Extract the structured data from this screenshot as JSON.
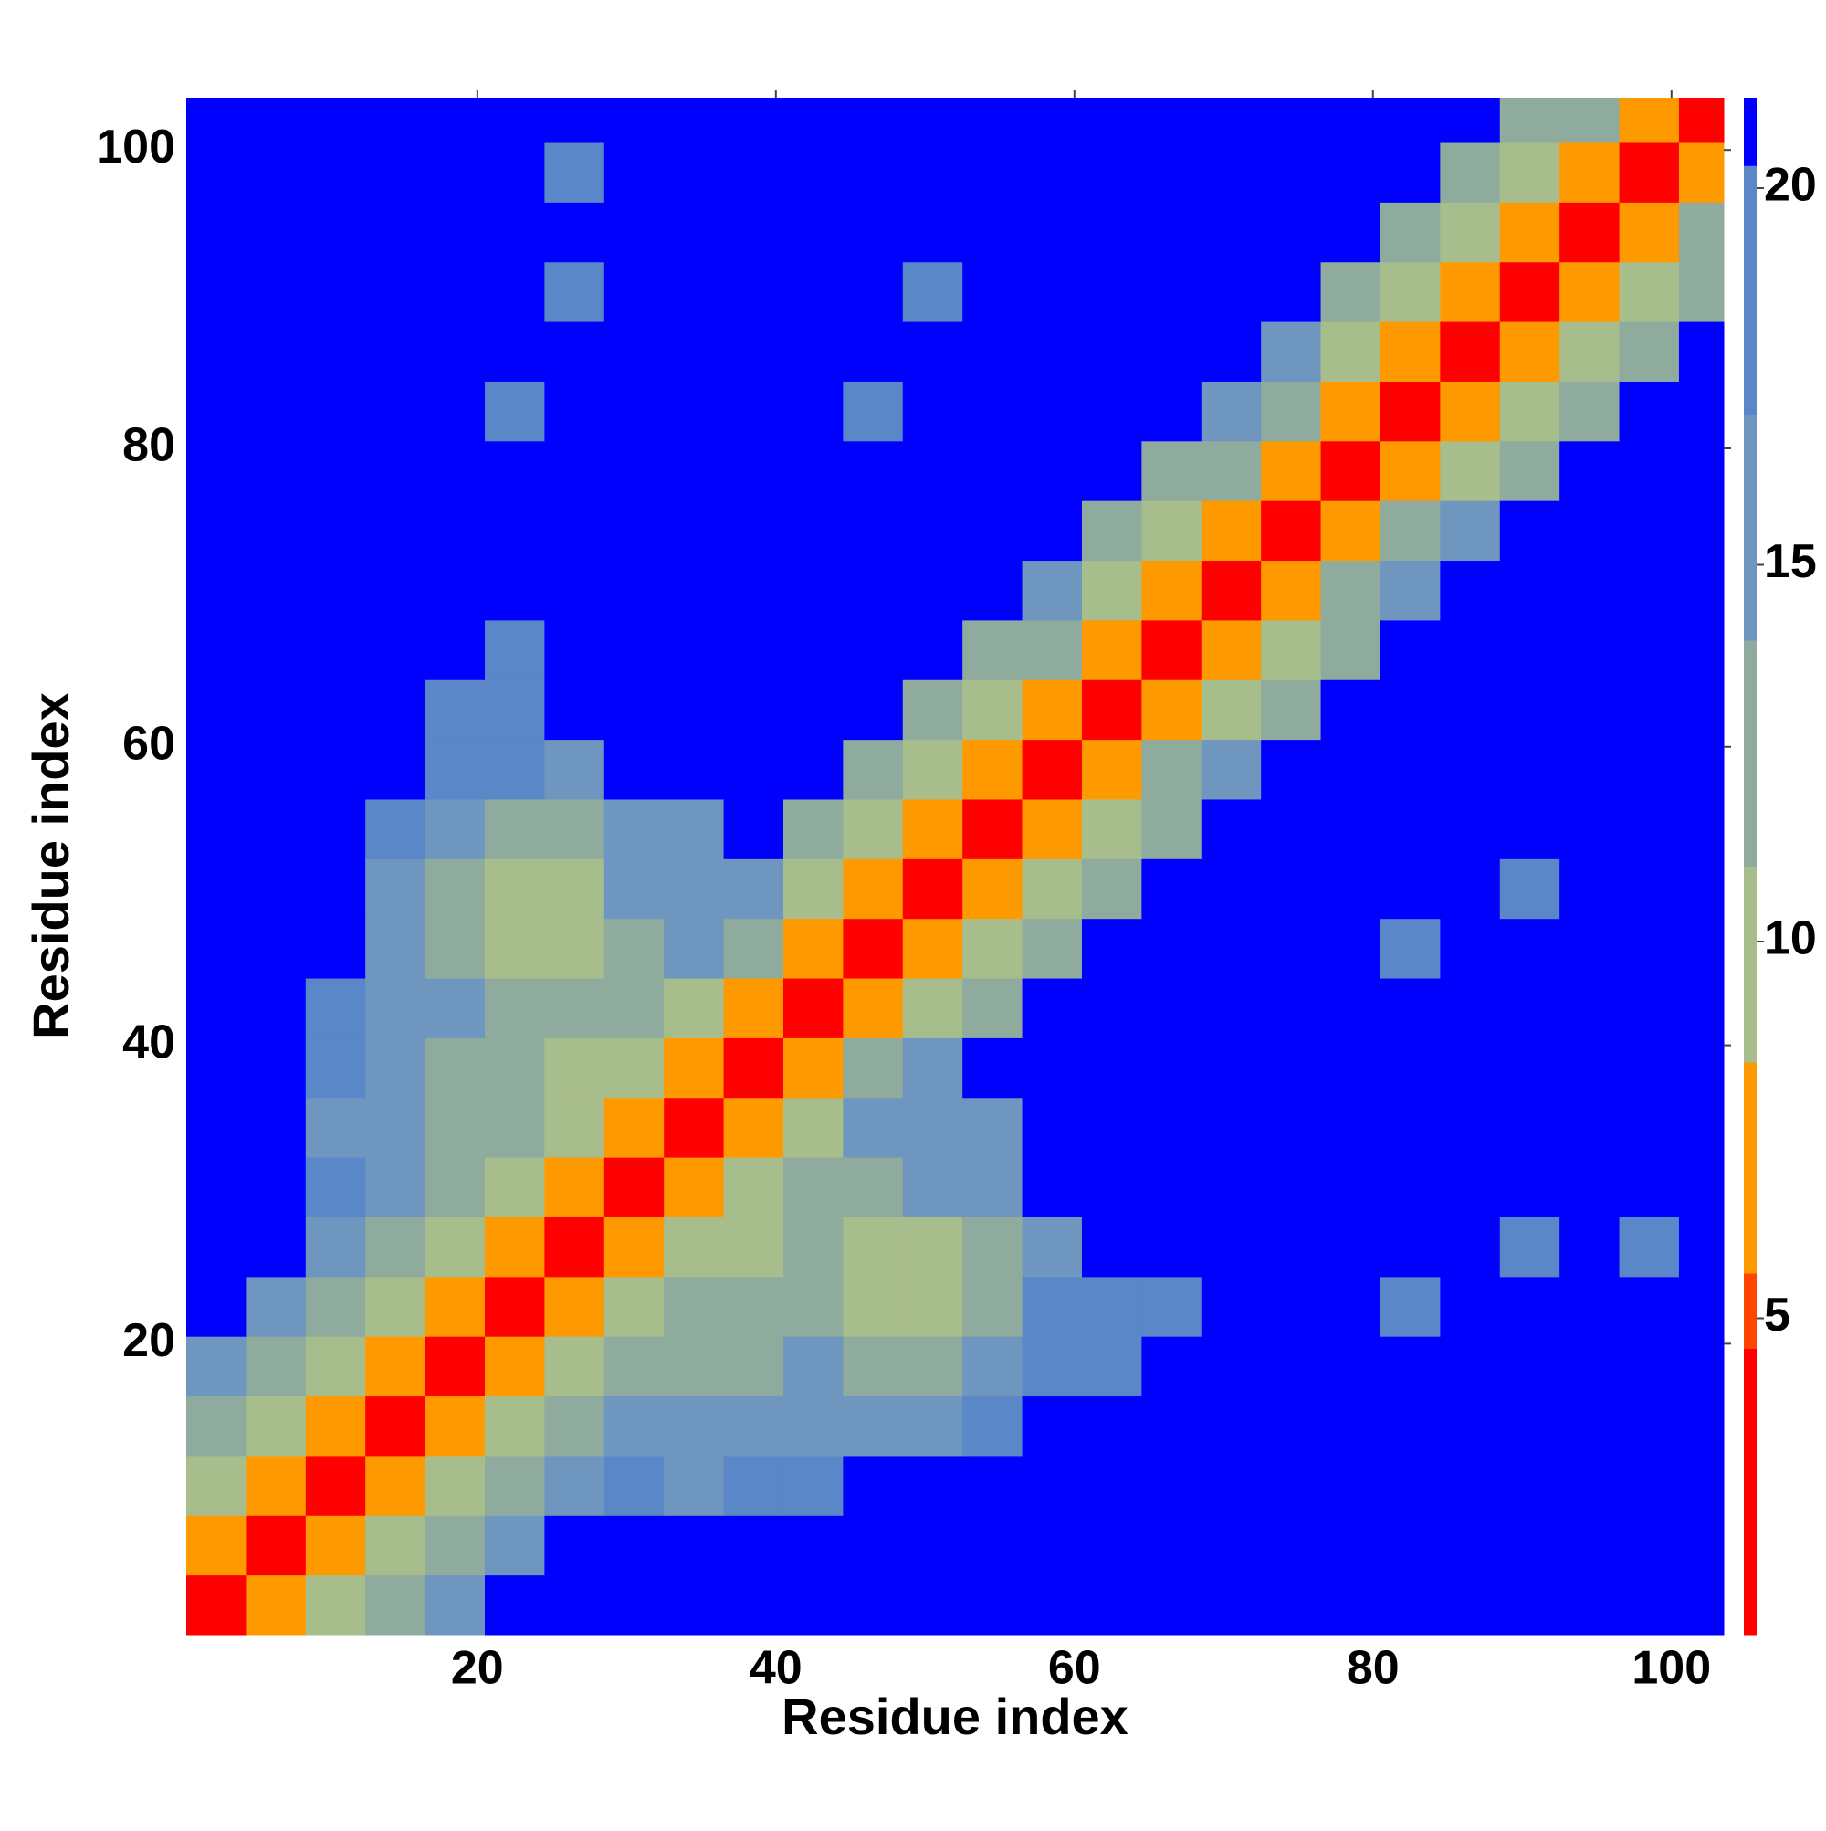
{
  "chart_data": {
    "type": "heatmap",
    "xlabel": "Residue index",
    "ylabel": "Residue index",
    "xbins": [
      0.5,
      4.5,
      8.5,
      12.5,
      16.5,
      20.5,
      24.5,
      28.5,
      32.5,
      36.5,
      40.5,
      44.5,
      48.5,
      52.5,
      56.5,
      60.5,
      64.5,
      68.5,
      72.5,
      76.5,
      80.5,
      84.5,
      88.5,
      92.5,
      96.5,
      100.5,
      103.5
    ],
    "ybins": [
      0.5,
      4.5,
      8.5,
      12.5,
      16.5,
      20.5,
      24.5,
      28.5,
      32.5,
      36.5,
      40.5,
      44.5,
      48.5,
      52.5,
      56.5,
      60.5,
      64.5,
      68.5,
      72.5,
      76.5,
      80.5,
      84.5,
      88.5,
      92.5,
      96.5,
      100.5,
      103.5
    ],
    "xlim": [
      0.5,
      103.5
    ],
    "ylim": [
      0.5,
      103.5
    ],
    "xticks": [
      20,
      40,
      60,
      80,
      100
    ],
    "yticks": [
      20,
      40,
      60,
      80,
      100
    ],
    "zlim": [
      0.8,
      21.2
    ],
    "zticks": [
      5,
      10,
      15,
      20
    ],
    "levels": [
      {
        "max": 4.6,
        "color": "#ff0000"
      },
      {
        "max": 5.6,
        "color": "#ff4500"
      },
      {
        "max": 8.4,
        "color": "#ff9900"
      },
      {
        "max": 11,
        "color": "#a8bd8c"
      },
      {
        "max": 14,
        "color": "#8eab9e"
      },
      {
        "max": 17,
        "color": "#6f96bf"
      },
      {
        "max": 20.3,
        "color": "#5a87c8"
      },
      {
        "max": 21.2,
        "color": "#0000ff"
      }
    ],
    "z": [
      [
        2,
        8,
        11,
        14,
        17,
        21,
        21,
        21,
        21,
        21,
        21,
        21,
        21,
        21,
        21,
        21,
        21,
        21,
        21,
        21,
        21,
        21,
        21,
        21,
        21,
        21
      ],
      [
        8,
        2,
        8,
        11,
        14,
        17,
        21,
        21,
        21,
        21,
        21,
        21,
        21,
        21,
        21,
        21,
        21,
        21,
        21,
        21,
        21,
        21,
        21,
        21,
        21,
        21
      ],
      [
        11,
        8,
        2,
        8,
        11,
        14,
        17,
        18,
        17,
        19,
        19,
        21,
        21,
        21,
        21,
        21,
        21,
        21,
        21,
        21,
        21,
        21,
        21,
        21,
        21,
        21
      ],
      [
        14,
        11,
        8,
        2,
        8,
        11,
        14,
        17,
        15,
        16,
        17,
        17,
        17,
        18,
        21,
        21,
        21,
        21,
        21,
        21,
        21,
        21,
        21,
        21,
        21,
        21
      ],
      [
        17,
        14,
        11,
        8,
        2,
        8,
        11,
        14,
        13,
        14,
        15,
        14,
        13,
        16,
        19,
        18,
        21,
        21,
        21,
        21,
        21,
        21,
        21,
        21,
        21,
        21
      ],
      [
        21,
        17,
        14,
        11,
        8,
        2,
        8,
        11,
        12,
        13,
        14,
        11,
        10,
        14,
        18,
        19,
        19,
        21,
        21,
        21,
        19,
        21,
        21,
        21,
        21,
        21
      ],
      [
        21,
        21,
        17,
        14,
        11,
        8,
        2,
        8,
        10,
        11,
        12,
        10,
        11,
        14,
        17,
        21,
        21,
        21,
        21,
        21,
        21,
        21,
        18,
        21,
        18,
        21
      ],
      [
        21,
        21,
        18,
        17,
        14,
        11,
        8,
        2,
        8,
        10,
        13,
        14,
        15,
        16,
        21,
        21,
        21,
        21,
        21,
        21,
        21,
        21,
        21,
        21,
        21,
        21
      ],
      [
        21,
        21,
        17,
        15,
        13,
        12,
        10,
        8,
        2,
        8,
        11,
        15,
        16,
        17,
        21,
        21,
        21,
        21,
        21,
        21,
        21,
        21,
        21,
        21,
        21,
        21
      ],
      [
        21,
        21,
        19,
        16,
        14,
        13,
        11,
        10,
        8,
        2,
        8,
        12,
        16,
        21,
        21,
        21,
        21,
        21,
        21,
        21,
        21,
        21,
        21,
        21,
        21,
        21
      ],
      [
        21,
        21,
        19,
        17,
        15,
        14,
        12,
        13,
        11,
        8,
        2,
        6,
        10,
        14,
        21,
        21,
        21,
        21,
        21,
        21,
        21,
        21,
        21,
        21,
        21,
        21
      ],
      [
        21,
        21,
        21,
        17,
        14,
        11,
        10,
        14,
        15,
        12,
        6,
        2,
        6,
        10,
        14,
        21,
        21,
        21,
        21,
        21,
        18,
        21,
        21,
        21,
        21,
        21
      ],
      [
        21,
        21,
        21,
        17,
        13,
        10,
        11,
        15,
        16,
        16,
        10,
        6,
        2,
        6,
        10,
        14,
        21,
        21,
        21,
        21,
        21,
        21,
        18,
        21,
        21,
        21
      ],
      [
        21,
        21,
        21,
        18,
        16,
        14,
        14,
        16,
        17,
        21,
        14,
        10,
        6,
        2,
        6,
        10,
        14,
        21,
        21,
        21,
        21,
        21,
        21,
        21,
        21,
        21
      ],
      [
        21,
        21,
        21,
        21,
        19,
        18,
        17,
        21,
        21,
        21,
        21,
        14,
        10,
        6,
        2,
        8,
        12,
        16,
        21,
        21,
        21,
        21,
        21,
        21,
        21,
        21
      ],
      [
        21,
        21,
        21,
        21,
        18,
        19,
        21,
        21,
        21,
        21,
        21,
        21,
        14,
        10,
        8,
        2,
        6,
        10,
        14,
        21,
        21,
        21,
        21,
        21,
        21,
        21
      ],
      [
        21,
        21,
        21,
        21,
        21,
        19,
        21,
        21,
        21,
        21,
        21,
        21,
        21,
        14,
        12,
        6,
        2,
        6,
        10,
        14,
        21,
        21,
        21,
        21,
        21,
        21
      ],
      [
        21,
        21,
        21,
        21,
        21,
        21,
        21,
        21,
        21,
        21,
        21,
        21,
        21,
        21,
        16,
        10,
        6,
        2,
        8,
        12,
        16,
        21,
        21,
        21,
        21,
        21
      ],
      [
        21,
        21,
        21,
        21,
        21,
        21,
        21,
        21,
        21,
        21,
        21,
        21,
        21,
        21,
        21,
        14,
        10,
        8,
        2,
        8,
        12,
        16,
        21,
        21,
        21,
        21
      ],
      [
        21,
        21,
        21,
        21,
        21,
        21,
        21,
        21,
        21,
        21,
        21,
        21,
        21,
        21,
        21,
        21,
        14,
        12,
        8,
        2,
        6,
        10,
        14,
        21,
        21,
        21
      ],
      [
        21,
        21,
        21,
        21,
        21,
        19,
        21,
        21,
        21,
        21,
        21,
        18,
        21,
        21,
        21,
        21,
        21,
        16,
        12,
        6,
        2,
        6,
        10,
        14,
        21,
        21
      ],
      [
        21,
        21,
        21,
        21,
        21,
        21,
        21,
        21,
        21,
        21,
        21,
        21,
        21,
        21,
        21,
        21,
        21,
        21,
        16,
        10,
        6,
        2,
        6,
        10,
        14,
        21
      ],
      [
        21,
        21,
        21,
        21,
        21,
        21,
        18,
        21,
        21,
        21,
        21,
        21,
        18,
        21,
        21,
        21,
        21,
        21,
        21,
        14,
        10,
        6,
        2,
        6,
        10,
        14
      ],
      [
        21,
        21,
        21,
        21,
        21,
        21,
        21,
        21,
        21,
        21,
        21,
        21,
        21,
        21,
        21,
        21,
        21,
        21,
        21,
        21,
        14,
        10,
        6,
        2,
        8,
        12
      ],
      [
        21,
        21,
        21,
        21,
        21,
        21,
        18,
        21,
        21,
        21,
        21,
        21,
        21,
        21,
        21,
        21,
        21,
        21,
        21,
        21,
        21,
        14,
        10,
        8,
        2,
        8
      ],
      [
        21,
        21,
        21,
        21,
        21,
        21,
        21,
        21,
        21,
        21,
        21,
        21,
        21,
        21,
        21,
        21,
        21,
        21,
        21,
        21,
        21,
        21,
        14,
        12,
        8,
        2
      ]
    ]
  }
}
